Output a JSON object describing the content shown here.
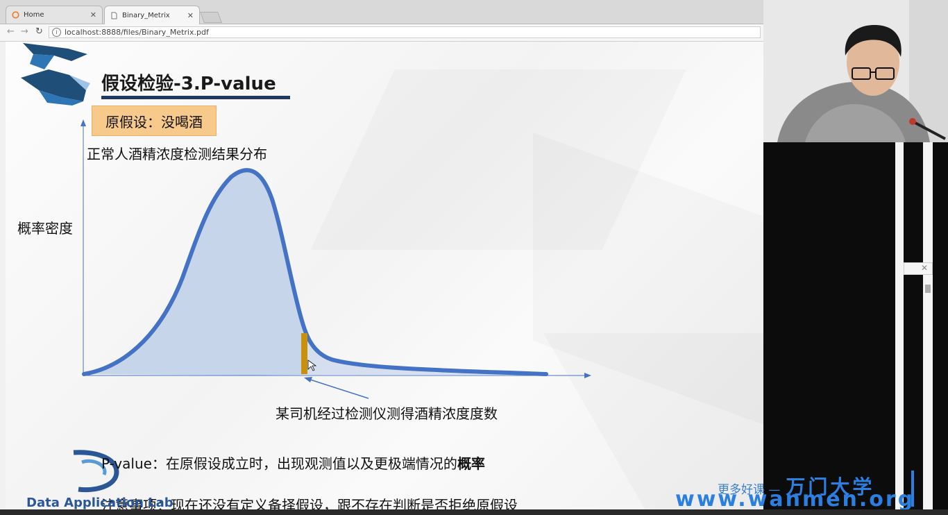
{
  "browser": {
    "tabs": [
      {
        "label": "Home",
        "icon": "jupyter-icon",
        "active": false
      },
      {
        "label": "Binary_Metrix",
        "icon": "document-icon",
        "active": true
      }
    ],
    "url": "localhost:8888/files/Binary_Metrix.pdf"
  },
  "slide": {
    "title": "假设检验-3.P-value",
    "hypothesis": "原假设：没喝酒",
    "distribution_title": "正常人酒精浓度检测结果分布",
    "y_axis_label": "概率密度",
    "annotation": "某司机经过检测仪测得酒精浓度度数",
    "pvalue_prefix": "P-value：在原假设成立时，出现观测值以及更极端情况的",
    "pvalue_bold": "概率",
    "attention": "注意事项：现在还没有定义备择假设，跟不存在判断是否拒绝原假设",
    "logo_text": "Data Application Lab"
  },
  "watermark": {
    "line1_prefix": "更多好课 —",
    "line1_brand": "万门大学",
    "line2": "www.wanmen.org"
  },
  "colors": {
    "curve": "#4472c4",
    "fill": "#b4c7e7",
    "marker": "#c9900c",
    "title_bar": "#1f3864",
    "hypothesis_bg": "#f7c98b",
    "watermark": "#2b7fe0"
  }
}
